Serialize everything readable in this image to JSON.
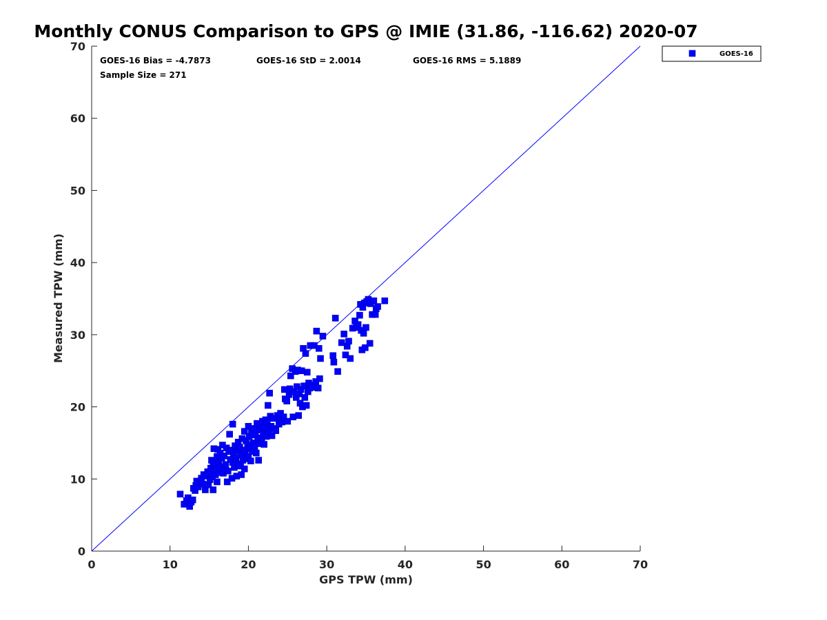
{
  "chart_data": {
    "type": "scatter",
    "title": "Monthly CONUS Comparison to GPS @ IMIE (31.86, -116.62) 2020-07",
    "xlabel": "GPS TPW (mm)",
    "ylabel": "Measured TPW (mm)",
    "xlim": [
      0,
      70
    ],
    "ylim": [
      0,
      70
    ],
    "xticks": [
      "0",
      "10",
      "20",
      "30",
      "40",
      "50",
      "60",
      "70"
    ],
    "yticks": [
      "0",
      "10",
      "20",
      "30",
      "40",
      "50",
      "60",
      "70"
    ],
    "grid": false,
    "legend_position": "outside top-right",
    "reference_line": [
      [
        0,
        0
      ],
      [
        70,
        70
      ]
    ],
    "annotations": {
      "bias": "GOES-16 Bias = -4.7873",
      "std": "GOES-16 StD = 2.0014",
      "rms": "GOES-16 RMS = 5.1889",
      "sample": "Sample Size = 271"
    },
    "series": [
      {
        "name": "GOES-16",
        "color": "#0000ff",
        "marker": "square",
        "points": [
          [
            11.3,
            7.9
          ],
          [
            11.8,
            6.5
          ],
          [
            12.1,
            7.0
          ],
          [
            12.3,
            7.4
          ],
          [
            12.5,
            6.2
          ],
          [
            12.7,
            6.8
          ],
          [
            12.9,
            7.1
          ],
          [
            13.0,
            8.7
          ],
          [
            13.2,
            8.4
          ],
          [
            13.3,
            9.1
          ],
          [
            13.4,
            9.7
          ],
          [
            13.6,
            8.9
          ],
          [
            13.8,
            9.6
          ],
          [
            14.0,
            10.1
          ],
          [
            14.2,
            9.3
          ],
          [
            14.3,
            10.6
          ],
          [
            14.5,
            8.5
          ],
          [
            14.6,
            10.4
          ],
          [
            14.8,
            11.0
          ],
          [
            14.9,
            9.2
          ],
          [
            15.0,
            10.8
          ],
          [
            15.1,
            9.9
          ],
          [
            15.2,
            11.5
          ],
          [
            15.3,
            12.6
          ],
          [
            15.4,
            10.3
          ],
          [
            15.5,
            11.9
          ],
          [
            15.5,
            8.5
          ],
          [
            15.6,
            14.2
          ],
          [
            15.7,
            12.2
          ],
          [
            15.8,
            10.6
          ],
          [
            15.9,
            11.3
          ],
          [
            16.0,
            13.1
          ],
          [
            16.0,
            9.6
          ],
          [
            16.1,
            14.1
          ],
          [
            16.2,
            12.4
          ],
          [
            16.3,
            10.9
          ],
          [
            16.4,
            13.6
          ],
          [
            16.5,
            11.7
          ],
          [
            16.6,
            12.9
          ],
          [
            16.7,
            14.7
          ],
          [
            16.8,
            10.8
          ],
          [
            16.9,
            13.2
          ],
          [
            17.0,
            11.4
          ],
          [
            17.1,
            12.0
          ],
          [
            17.2,
            14.3
          ],
          [
            17.3,
            9.6
          ],
          [
            17.4,
            11.1
          ],
          [
            17.5,
            13.8
          ],
          [
            17.6,
            16.2
          ],
          [
            17.7,
            12.7
          ],
          [
            17.8,
            14.0
          ],
          [
            17.9,
            10.1
          ],
          [
            18.0,
            17.6
          ],
          [
            18.0,
            12.3
          ],
          [
            18.1,
            13.5
          ],
          [
            18.2,
            11.6
          ],
          [
            18.3,
            14.6
          ],
          [
            18.4,
            12.9
          ],
          [
            18.5,
            10.4
          ],
          [
            18.6,
            13.9
          ],
          [
            18.7,
            15.1
          ],
          [
            18.8,
            12.1
          ],
          [
            18.9,
            14.4
          ],
          [
            19.0,
            11.8
          ],
          [
            19.0,
            13.3
          ],
          [
            19.1,
            10.6
          ],
          [
            19.2,
            15.6
          ],
          [
            19.3,
            12.6
          ],
          [
            19.4,
            14.0
          ],
          [
            19.5,
            16.6
          ],
          [
            19.5,
            11.4
          ],
          [
            19.6,
            13.6
          ],
          [
            19.7,
            15.3
          ],
          [
            19.8,
            12.8
          ],
          [
            19.9,
            14.7
          ],
          [
            20.0,
            17.3
          ],
          [
            20.0,
            13.1
          ],
          [
            20.1,
            15.9
          ],
          [
            20.2,
            14.2
          ],
          [
            20.3,
            12.5
          ],
          [
            20.4,
            16.4
          ],
          [
            20.5,
            13.8
          ],
          [
            20.6,
            15.0
          ],
          [
            20.7,
            17.0
          ],
          [
            20.8,
            14.5
          ],
          [
            20.9,
            16.1
          ],
          [
            21.0,
            13.6
          ],
          [
            21.1,
            17.7
          ],
          [
            21.2,
            15.4
          ],
          [
            21.3,
            12.6
          ],
          [
            21.4,
            16.8
          ],
          [
            21.5,
            14.9
          ],
          [
            21.6,
            17.4
          ],
          [
            21.7,
            15.7
          ],
          [
            21.8,
            18.0
          ],
          [
            21.9,
            16.3
          ],
          [
            22.0,
            14.8
          ],
          [
            22.1,
            17.1
          ],
          [
            22.2,
            18.2
          ],
          [
            22.3,
            15.9
          ],
          [
            22.4,
            17.8
          ],
          [
            22.5,
            20.2
          ],
          [
            22.6,
            16.6
          ],
          [
            22.7,
            21.9
          ],
          [
            22.8,
            18.7
          ],
          [
            22.9,
            17.3
          ],
          [
            23.0,
            16.0
          ],
          [
            23.2,
            18.4
          ],
          [
            23.4,
            17.0
          ],
          [
            23.5,
            16.7
          ],
          [
            23.7,
            18.8
          ],
          [
            23.9,
            17.6
          ],
          [
            24.0,
            18.3
          ],
          [
            24.1,
            19.1
          ],
          [
            24.3,
            17.9
          ],
          [
            24.5,
            18.6
          ],
          [
            24.6,
            22.4
          ],
          [
            24.7,
            21.1
          ],
          [
            24.9,
            20.8
          ],
          [
            25.0,
            18.0
          ],
          [
            25.2,
            21.7
          ],
          [
            25.3,
            22.5
          ],
          [
            25.4,
            24.3
          ],
          [
            25.6,
            25.3
          ],
          [
            25.7,
            18.6
          ],
          [
            25.8,
            22.1
          ],
          [
            26.0,
            24.9
          ],
          [
            26.1,
            21.3
          ],
          [
            26.2,
            22.8
          ],
          [
            26.3,
            25.1
          ],
          [
            26.4,
            18.8
          ],
          [
            26.5,
            21.8
          ],
          [
            26.6,
            20.5
          ],
          [
            26.7,
            22.4
          ],
          [
            26.8,
            25.0
          ],
          [
            26.9,
            20.0
          ],
          [
            27.0,
            28.1
          ],
          [
            27.1,
            22.9
          ],
          [
            27.2,
            21.3
          ],
          [
            27.3,
            27.4
          ],
          [
            27.4,
            20.2
          ],
          [
            27.5,
            24.8
          ],
          [
            27.6,
            22.1
          ],
          [
            27.7,
            23.3
          ],
          [
            27.8,
            22.6
          ],
          [
            27.9,
            28.5
          ],
          [
            28.0,
            23.0
          ],
          [
            28.2,
            22.7
          ],
          [
            28.4,
            28.5
          ],
          [
            28.6,
            23.5
          ],
          [
            28.7,
            30.5
          ],
          [
            28.9,
            22.6
          ],
          [
            29.0,
            28.1
          ],
          [
            29.1,
            23.9
          ],
          [
            29.2,
            26.7
          ],
          [
            29.5,
            29.8
          ],
          [
            30.8,
            27.1
          ],
          [
            30.9,
            26.2
          ],
          [
            31.1,
            32.3
          ],
          [
            31.4,
            24.9
          ],
          [
            31.9,
            28.9
          ],
          [
            32.2,
            30.1
          ],
          [
            32.4,
            27.2
          ],
          [
            32.6,
            28.4
          ],
          [
            32.8,
            29.1
          ],
          [
            33.0,
            26.7
          ],
          [
            33.3,
            30.9
          ],
          [
            33.6,
            31.9
          ],
          [
            33.8,
            31.0
          ],
          [
            34.0,
            31.4
          ],
          [
            34.2,
            32.7
          ],
          [
            34.3,
            34.2
          ],
          [
            34.4,
            30.6
          ],
          [
            34.5,
            27.9
          ],
          [
            34.6,
            33.8
          ],
          [
            34.7,
            30.2
          ],
          [
            34.8,
            34.4
          ],
          [
            34.9,
            28.2
          ],
          [
            35.0,
            31.0
          ],
          [
            35.1,
            34.6
          ],
          [
            35.3,
            34.9
          ],
          [
            35.5,
            28.8
          ],
          [
            35.6,
            34.3
          ],
          [
            35.8,
            32.8
          ],
          [
            36.0,
            34.7
          ],
          [
            36.2,
            32.8
          ],
          [
            36.3,
            33.6
          ],
          [
            36.5,
            33.9
          ],
          [
            37.4,
            34.7
          ]
        ]
      }
    ]
  }
}
